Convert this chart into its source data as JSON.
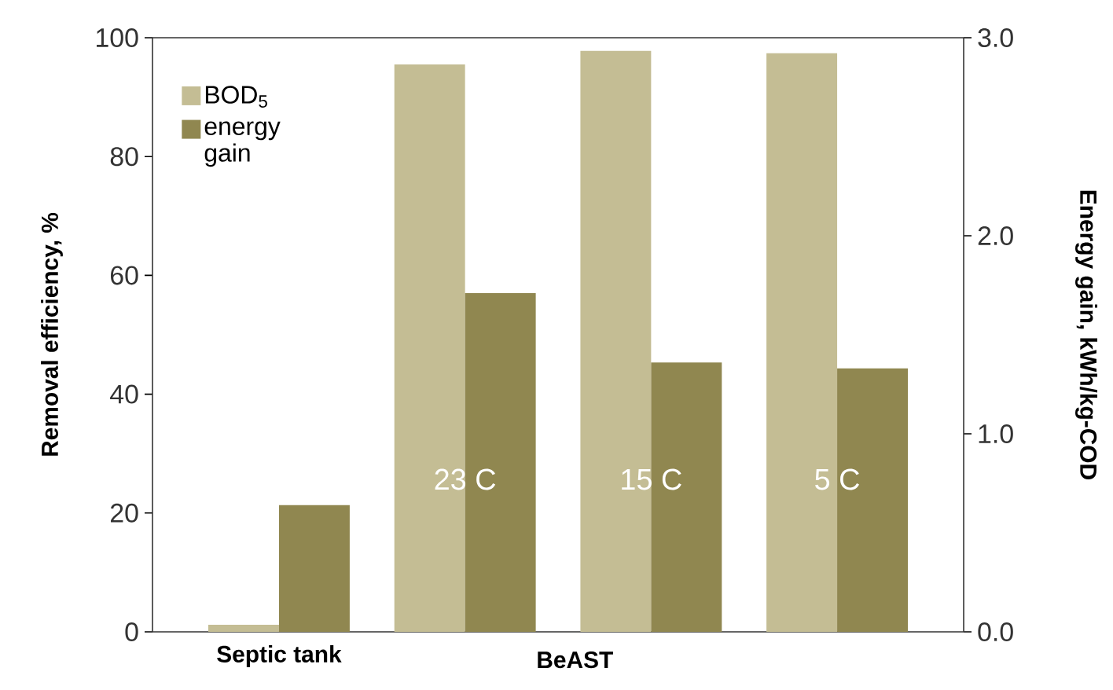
{
  "chart_data": {
    "type": "bar",
    "categories": [
      "Septic tank",
      null,
      null,
      null
    ],
    "series": [
      {
        "name": "BOD$_{5}$",
        "color": "#c4bd94",
        "values": [
          1.2,
          95.5,
          97.8,
          97.4
        ]
      },
      {
        "name": "energy gain",
        "color": "#908750",
        "values": [
          0.64,
          1.71,
          1.36,
          1.33
        ],
        "axis": "y2"
      }
    ],
    "ylabel": "Removal efficiency, %",
    "y2label": "Energy gain, kWh/kg-COD",
    "ylim": [
      0,
      100
    ],
    "yticks": [
      0,
      20,
      40,
      60,
      80,
      100
    ],
    "y2lim": [
      0,
      3
    ],
    "y2ticks": [
      {
        "value": 0,
        "label": "0.0"
      },
      {
        "value": 1,
        "label": "1.0"
      },
      {
        "value": 2,
        "label": "2.0"
      },
      {
        "value": 3,
        "label": "3.0"
      }
    ],
    "annotations": [
      "BeAST",
      "23 C",
      "15 C",
      "5 C"
    ],
    "legend": "top left",
    "grid": false
  }
}
